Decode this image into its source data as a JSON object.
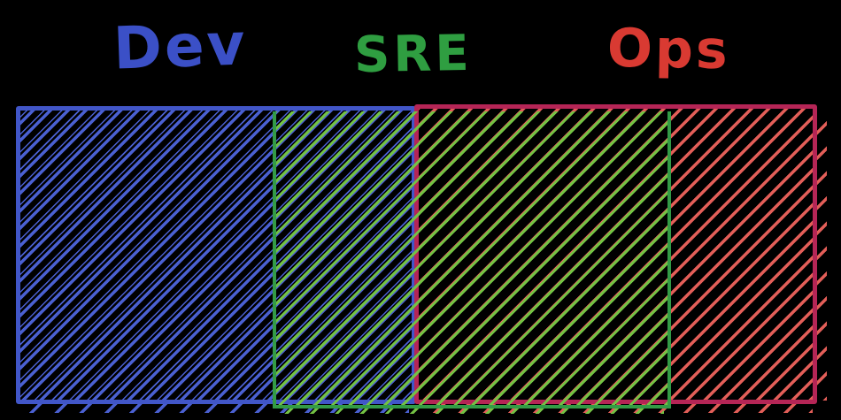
{
  "labels": {
    "dev": "Dev",
    "sre": "SRE",
    "ops": "Ops"
  },
  "colors": {
    "background": "#000000",
    "dev-label": "#3b50c7",
    "dev-border": "#4156c8",
    "dev-hatch": "#4a60d1",
    "sre-label": "#2f9e41",
    "sre-border": "#339b46",
    "sre-hatch": "#74c244",
    "ops-label": "#d93a32",
    "ops-border": "#b52556",
    "ops-hatch": "#e25e58"
  },
  "diagram": {
    "type": "overlapping-sets",
    "description": "Three diagonally hatched rectangles on a black background; the SRE band overlaps the right portion of Dev and the left portion of Ops",
    "sets": [
      {
        "name": "Dev",
        "hatch_style": "blue diagonal lines"
      },
      {
        "name": "SRE",
        "hatch_style": "green diagonal lines"
      },
      {
        "name": "Ops",
        "hatch_style": "red diagonal lines"
      }
    ],
    "overlaps": [
      [
        "Dev",
        "SRE"
      ],
      [
        "SRE",
        "Ops"
      ]
    ]
  }
}
